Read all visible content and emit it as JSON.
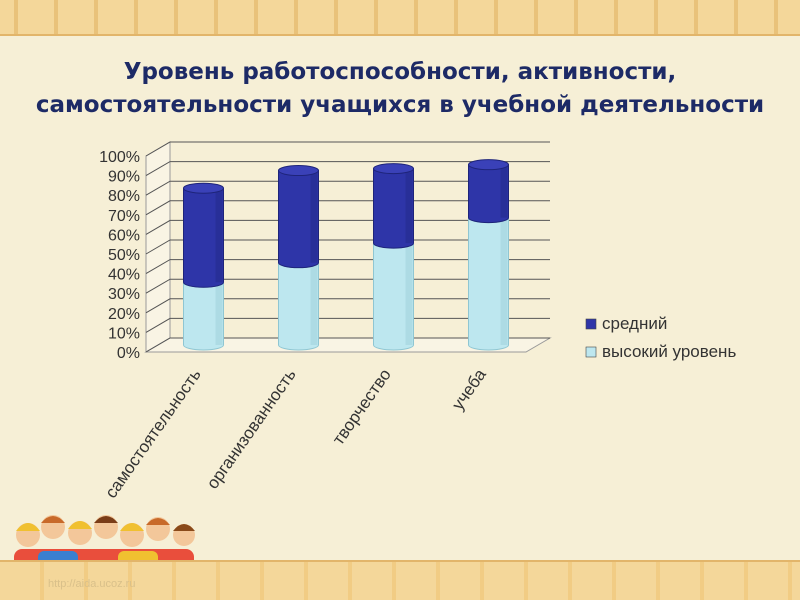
{
  "title_line1": "Уровень работоспособности, активности,",
  "title_line2": "самостоятельности учащихся в учебной деятельности",
  "watermark": "http://aida.ucoz.ru",
  "colors": {
    "top": "#2e35a8",
    "bottom": "#bde7ef",
    "title": "#1d2a66"
  },
  "chart_data": {
    "type": "bar",
    "stacked": true,
    "categories": [
      "самостоятельность",
      "организованность",
      "творчество",
      "учеба"
    ],
    "series": [
      {
        "name": "высокий уровень",
        "values": [
          32,
          42,
          52,
          65
        ],
        "color": "#bde7ef"
      },
      {
        "name": "средний",
        "values": [
          48,
          47,
          38,
          27
        ],
        "color": "#2e35a8"
      }
    ],
    "ylim": [
      0,
      100
    ],
    "yticks": [
      "0%",
      "10%",
      "20%",
      "30%",
      "40%",
      "50%",
      "60%",
      "70%",
      "80%",
      "90%",
      "100%"
    ],
    "legend_position": "right",
    "grid": true
  }
}
